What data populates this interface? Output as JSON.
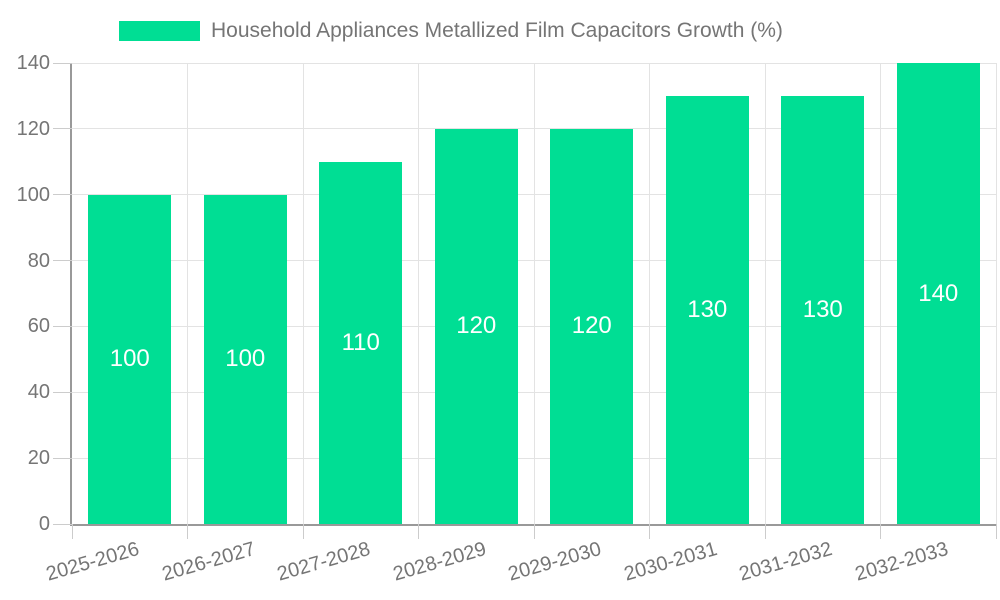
{
  "legend": {
    "label": "Household Appliances Metallized Film Capacitors Growth (%)",
    "swatch_color": "#00DE94"
  },
  "chart_data": {
    "type": "bar",
    "title": "Household Appliances Metallized Film Capacitors Growth (%)",
    "categories": [
      "2025-2026",
      "2026-2027",
      "2027-2028",
      "2028-2029",
      "2029-2030",
      "2030-2031",
      "2031-2032",
      "2032-2033"
    ],
    "values": [
      100,
      100,
      110,
      120,
      120,
      130,
      130,
      140
    ],
    "bar_labels": [
      "100",
      "100",
      "110",
      "120",
      "120",
      "130",
      "130",
      "140"
    ],
    "xlabel": "",
    "ylabel": "",
    "ylim": [
      0,
      140
    ],
    "yticks": [
      0,
      20,
      40,
      60,
      80,
      100,
      120,
      140
    ],
    "grid": true,
    "legend_position": "top-center",
    "colors": {
      "bar": "#00DE94",
      "value_label": "#FFFFFF",
      "axis_label": "#757575",
      "legend_label": "#757575",
      "axis_line": "#999999",
      "gridline": "#E3E3E3",
      "tick": "#CCCCCC",
      "background": "#FFFFFF"
    },
    "x_label_rotation_deg": -16
  }
}
